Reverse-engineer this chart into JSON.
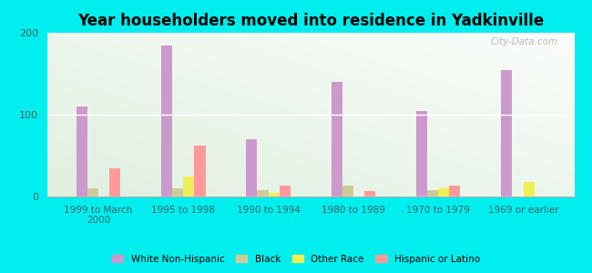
{
  "title": "Year householders moved into residence in Yadkinville",
  "categories": [
    "1999 to March\n2000",
    "1995 to 1998",
    "1990 to 1994",
    "1980 to 1989",
    "1970 to 1979",
    "1969 or earlier"
  ],
  "series": {
    "White Non-Hispanic": [
      110,
      185,
      70,
      140,
      105,
      155
    ],
    "Black": [
      10,
      10,
      8,
      13,
      8,
      0
    ],
    "Other Race": [
      0,
      25,
      5,
      0,
      10,
      18
    ],
    "Hispanic or Latino": [
      35,
      62,
      13,
      7,
      13,
      0
    ]
  },
  "colors": {
    "White Non-Hispanic": "#cc99cc",
    "Black": "#cccc99",
    "Other Race": "#eeee55",
    "Hispanic or Latino": "#ff9999"
  },
  "ylim": [
    0,
    200
  ],
  "yticks": [
    0,
    100,
    200
  ],
  "background_outer": "#00eeee",
  "watermark": "City-Data.com",
  "bar_width": 0.13
}
